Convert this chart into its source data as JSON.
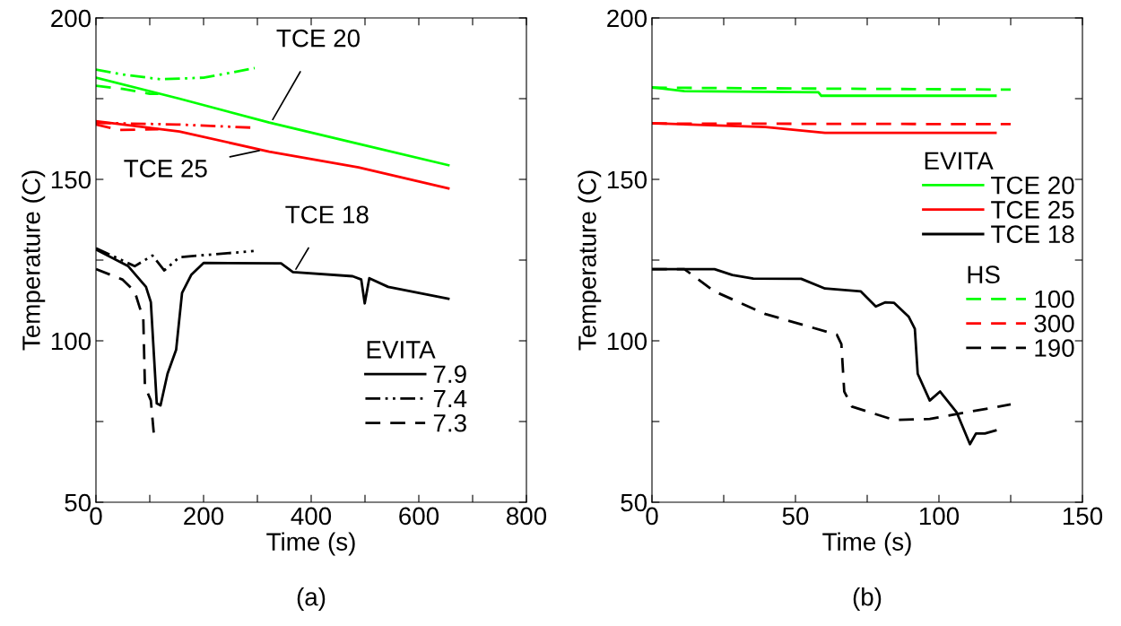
{
  "chart_data": [
    {
      "type": "line",
      "xlabel": "Time (s)",
      "ylabel": "Temperature (C)",
      "xlim": [
        0,
        800
      ],
      "ylim": [
        50,
        200
      ],
      "xticks": [
        0,
        {
          "value": 100,
          "label": null
        },
        200,
        {
          "value": 300,
          "label": null
        },
        400,
        {
          "value": 500,
          "label": null
        },
        600,
        {
          "value": 700,
          "label": null
        },
        800
      ],
      "yticks": [
        50,
        {
          "value": 75,
          "label": null
        },
        100,
        {
          "value": 125,
          "label": null
        },
        150,
        {
          "value": 175,
          "label": null
        },
        200
      ],
      "grid": false,
      "legend": "bottom right",
      "legend_title": [
        "EVITA"
      ],
      "annotations": [
        {
          "text": "TCE 20",
          "x": 325,
          "y": 167.5
        },
        {
          "text": "TCE 25",
          "x": 308,
          "y": 159.1
        },
        {
          "text": "TCE 18",
          "x": 368,
          "y": 121.2
        },
        "(a)"
      ],
      "series": [
        {
          "color": "#00ff00",
          "line_style": "solid",
          "x": [
            0,
            155,
            322,
            488,
            655
          ],
          "values": [
            181.5,
            175,
            167.6,
            161,
            154.4
          ]
        },
        {
          "color": "#00ff00",
          "line_style": "dashdotdot",
          "x": [
            0,
            50,
            120,
            200,
            250,
            295
          ],
          "values": [
            184,
            182.5,
            181,
            181.5,
            183,
            184.5
          ]
        },
        {
          "color": "#00ff00",
          "line_style": "dashed",
          "x": [
            0,
            50,
            100,
            116
          ],
          "values": [
            179,
            178,
            176.5,
            176.5
          ]
        },
        {
          "color": "#ff0000",
          "line_style": "solid",
          "x": [
            0,
            155,
            322,
            488,
            655
          ],
          "values": [
            168,
            164.8,
            158.6,
            153.7,
            147.2
          ]
        },
        {
          "color": "#ff0000",
          "line_style": "dashdotdot",
          "x": [
            0,
            150,
            293
          ],
          "values": [
            167.5,
            167,
            166
          ]
        },
        {
          "color": "#ff0000",
          "line_style": "dashed",
          "x": [
            0,
            44,
            116
          ],
          "values": [
            167,
            165.3,
            165.5
          ]
        },
        {
          "name": "7.9",
          "color": "#000000",
          "line_style": "solid",
          "x": [
            0,
            60,
            93,
            102,
            113,
            120,
            133,
            149,
            160,
            177,
            200,
            344,
            366,
            477,
            493,
            499.5,
            508,
            543,
            655
          ],
          "values": [
            128.3,
            123.1,
            116.7,
            112,
            80.6,
            80,
            89.8,
            97.2,
            114.8,
            120.4,
            124.1,
            124,
            121.3,
            120,
            119,
            111.6,
            119.4,
            116.7,
            113
          ]
        },
        {
          "name": "7.4",
          "color": "#000000",
          "line_style": "dashdotdot",
          "x": [
            0,
            72,
            105,
            127,
            155,
            293
          ],
          "values": [
            128.7,
            123.1,
            126.4,
            121.8,
            125.9,
            127.8
          ]
        },
        {
          "name": "7.3",
          "color": "#000000",
          "line_style": "dashed",
          "x": [
            0,
            49,
            72,
            80,
            88,
            91,
            102,
            108
          ],
          "values": [
            122.2,
            119,
            115.3,
            111,
            106.8,
            86,
            81.5,
            70.4
          ]
        }
      ]
    },
    {
      "type": "line",
      "xlabel": "Time (s)",
      "ylabel": "Temperature (C)",
      "xlim": [
        0,
        150
      ],
      "ylim": [
        50,
        200
      ],
      "xticks": [
        0,
        {
          "value": 25,
          "label": null
        },
        50,
        {
          "value": 75,
          "label": null
        },
        100,
        {
          "value": 125,
          "label": null
        },
        150
      ],
      "yticks": [
        50,
        {
          "value": 75,
          "label": null
        },
        100,
        {
          "value": 125,
          "label": null
        },
        150,
        {
          "value": 175,
          "label": null
        },
        200
      ],
      "grid": false,
      "legend": "right",
      "legend_title": [
        "EVITA",
        "HS"
      ],
      "annotations": [
        "(b)"
      ],
      "series": [
        {
          "name": "TCE 20",
          "color": "#00ff00",
          "line_style": "solid",
          "x": [
            0,
            11.3,
            58,
            59,
            119.7
          ],
          "values": [
            178.5,
            177.3,
            177,
            175.9,
            175.9
          ]
        },
        {
          "name": "TCE 25",
          "color": "#ff0000",
          "line_style": "solid",
          "x": [
            0,
            39.5,
            60.3,
            119.7
          ],
          "values": [
            167.4,
            166.2,
            164.4,
            164.4
          ]
        },
        {
          "name": "TCE 18",
          "color": "#000000",
          "line_style": "solid",
          "x": [
            0,
            21.8,
            28,
            35.3,
            52,
            60.3,
            72.8,
            78,
            81.2,
            84.3,
            89.5,
            91.6,
            92.6,
            96.8,
            100.4,
            106.2,
            110.8,
            112.9,
            116,
            119.7
          ],
          "values": [
            122.2,
            122.2,
            120.4,
            119.3,
            119.2,
            116.2,
            115.3,
            110.6,
            111.9,
            111.8,
            107.4,
            103.7,
            89.8,
            81.5,
            84.3,
            77.8,
            68,
            71.3,
            71.3,
            72.2
          ]
        },
        {
          "name": "100",
          "color": "#00ff00",
          "line_style": "dashed",
          "x": [
            0,
            125
          ],
          "values": [
            178.4,
            177.8
          ]
        },
        {
          "name": "300",
          "color": "#ff0000",
          "line_style": "dashed",
          "x": [
            0,
            125
          ],
          "values": [
            167.3,
            167.1
          ]
        },
        {
          "name": "190",
          "color": "#000000",
          "line_style": "dashed",
          "x": [
            0,
            11.3,
            21.8,
            39.5,
            64.4,
            66,
            67,
            69.7,
            84.3,
            96.8,
            125
          ],
          "values": [
            122.2,
            122.2,
            115.3,
            108.3,
            101.9,
            99,
            84.3,
            79.6,
            75.5,
            75.8,
            80.3
          ]
        }
      ]
    }
  ]
}
